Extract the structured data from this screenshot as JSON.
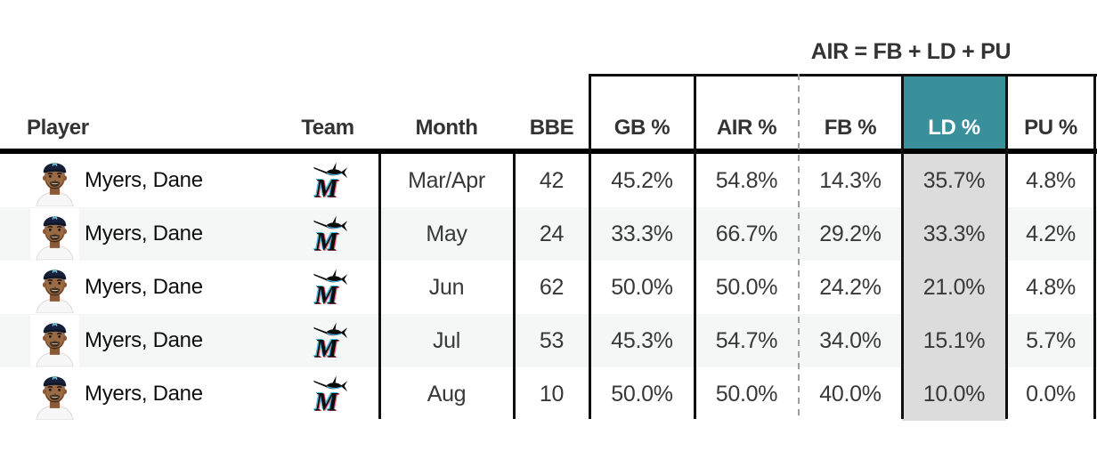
{
  "formula_label": "AIR = FB + LD + PU",
  "columns": {
    "player": "Player",
    "team": "Team",
    "month": "Month",
    "bbe": "BBE",
    "gb": "GB %",
    "air": "AIR %",
    "fb": "FB %",
    "ld": "LD %",
    "pu": "PU %"
  },
  "rows": [
    {
      "player": "Myers, Dane",
      "month": "Mar/Apr",
      "bbe": "42",
      "gb": "45.2%",
      "air": "54.8%",
      "fb": "14.3%",
      "ld": "35.7%",
      "pu": "4.8%"
    },
    {
      "player": "Myers, Dane",
      "month": "May",
      "bbe": "24",
      "gb": "33.3%",
      "air": "66.7%",
      "fb": "29.2%",
      "ld": "33.3%",
      "pu": "4.2%"
    },
    {
      "player": "Myers, Dane",
      "month": "Jun",
      "bbe": "62",
      "gb": "50.0%",
      "air": "50.0%",
      "fb": "24.2%",
      "ld": "21.0%",
      "pu": "4.8%"
    },
    {
      "player": "Myers, Dane",
      "month": "Jul",
      "bbe": "53",
      "gb": "45.3%",
      "air": "54.7%",
      "fb": "34.0%",
      "ld": "15.1%",
      "pu": "5.7%"
    },
    {
      "player": "Myers, Dane",
      "month": "Aug",
      "bbe": "10",
      "gb": "50.0%",
      "air": "50.0%",
      "fb": "40.0%",
      "ld": "10.0%",
      "pu": "0.0%"
    }
  ],
  "icons": {
    "player_photo": "player-headshot",
    "team_logo": "miami-marlins-logo"
  },
  "colors": {
    "highlight_header": "#39909b",
    "highlight_header_text": "#ffffff",
    "highlight_cell": "#dcdcdc",
    "row_stripe": "#f5f6f6",
    "border": "#0f0f0f",
    "thick_rule": "#000000",
    "dashed_line": "#9e9e9e",
    "header_text": "#333333",
    "data_text": "#383838"
  }
}
